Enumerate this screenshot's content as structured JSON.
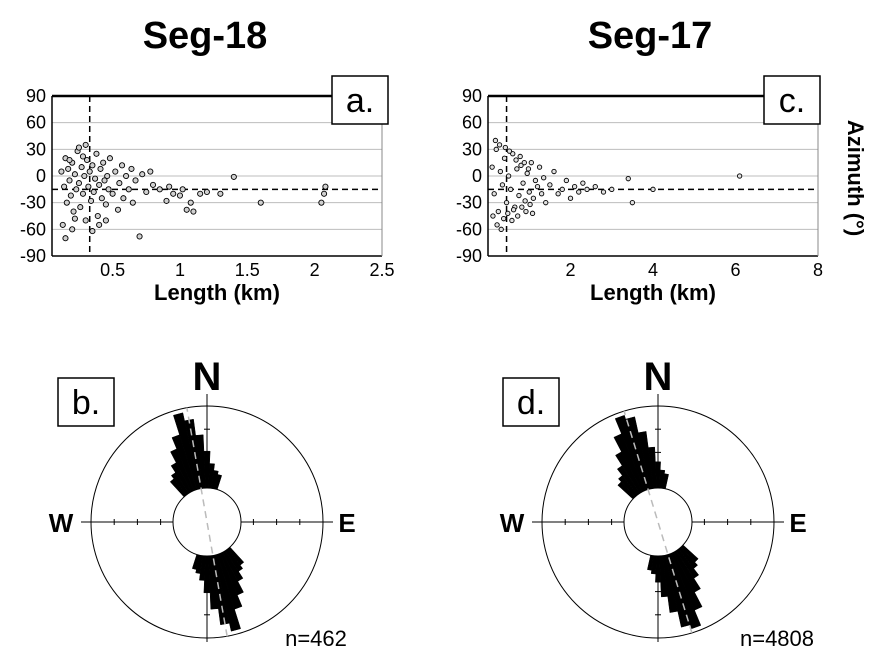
{
  "chart_data": [
    {
      "type": "scatter",
      "title": "Seg-18",
      "panel_label": "a.",
      "xlabel": "Length (km)",
      "ylabel": "",
      "xlim": [
        0.05,
        2.5
      ],
      "ylim": [
        -90,
        90
      ],
      "x_ticks": [
        "0.5",
        "1",
        "1.5",
        "2",
        "2.5"
      ],
      "x_tick_values": [
        0.5,
        1,
        1.5,
        2,
        2.5
      ],
      "y_ticks": [
        "90",
        "60",
        "30",
        "0",
        "-30",
        "-60",
        "-90"
      ],
      "y_tick_values": [
        90,
        60,
        30,
        0,
        -30,
        -60,
        -90
      ],
      "grid": true,
      "ref_mean_azimuth": -15,
      "ref_length": 0.33,
      "points": [
        [
          0.12,
          5
        ],
        [
          0.14,
          -12
        ],
        [
          0.15,
          20
        ],
        [
          0.16,
          -30
        ],
        [
          0.17,
          8
        ],
        [
          0.18,
          -5
        ],
        [
          0.19,
          -22
        ],
        [
          0.2,
          15
        ],
        [
          0.21,
          -40
        ],
        [
          0.22,
          2
        ],
        [
          0.23,
          -15
        ],
        [
          0.24,
          28
        ],
        [
          0.25,
          -8
        ],
        [
          0.26,
          -35
        ],
        [
          0.27,
          10
        ],
        [
          0.28,
          -20
        ],
        [
          0.29,
          0
        ],
        [
          0.3,
          -50
        ],
        [
          0.31,
          18
        ],
        [
          0.32,
          -12
        ],
        [
          0.33,
          5
        ],
        [
          0.34,
          -28
        ],
        [
          0.35,
          12
        ],
        [
          0.36,
          -18
        ],
        [
          0.37,
          -3
        ],
        [
          0.38,
          25
        ],
        [
          0.39,
          -45
        ],
        [
          0.4,
          -10
        ],
        [
          0.41,
          8
        ],
        [
          0.42,
          -25
        ],
        [
          0.43,
          15
        ],
        [
          0.44,
          -5
        ],
        [
          0.45,
          -32
        ],
        [
          0.46,
          0
        ],
        [
          0.47,
          -15
        ],
        [
          0.48,
          20
        ],
        [
          0.5,
          -20
        ],
        [
          0.52,
          5
        ],
        [
          0.54,
          -38
        ],
        [
          0.55,
          -8
        ],
        [
          0.57,
          12
        ],
        [
          0.58,
          -25
        ],
        [
          0.6,
          0
        ],
        [
          0.62,
          -15
        ],
        [
          0.64,
          8
        ],
        [
          0.65,
          -30
        ],
        [
          0.67,
          -5
        ],
        [
          0.7,
          -68
        ],
        [
          0.72,
          2
        ],
        [
          0.75,
          -18
        ],
        [
          0.78,
          5
        ],
        [
          0.8,
          -10
        ],
        [
          0.85,
          -15
        ],
        [
          0.9,
          -28
        ],
        [
          0.92,
          -12
        ],
        [
          0.95,
          -20
        ],
        [
          1.0,
          -22
        ],
        [
          1.02,
          -15
        ],
        [
          1.05,
          -38
        ],
        [
          1.08,
          -30
        ],
        [
          1.1,
          -40
        ],
        [
          1.15,
          -20
        ],
        [
          1.2,
          -18
        ],
        [
          1.3,
          -20
        ],
        [
          1.4,
          -1
        ],
        [
          1.6,
          -30
        ],
        [
          2.05,
          -30
        ],
        [
          2.07,
          -20
        ],
        [
          2.08,
          -12
        ],
        [
          0.13,
          -55
        ],
        [
          0.15,
          -70
        ],
        [
          0.2,
          -60
        ],
        [
          0.25,
          32
        ],
        [
          0.3,
          35
        ],
        [
          0.35,
          -62
        ],
        [
          0.4,
          -55
        ],
        [
          0.45,
          -50
        ],
        [
          0.18,
          18
        ],
        [
          0.22,
          -48
        ],
        [
          0.28,
          22
        ]
      ]
    },
    {
      "type": "scatter",
      "title": "Seg-17",
      "panel_label": "c.",
      "xlabel": "Length (km)",
      "ylabel": "Azimuth (°)",
      "xlim": [
        0,
        8
      ],
      "ylim": [
        -90,
        90
      ],
      "x_ticks": [
        "2",
        "4",
        "6",
        "8"
      ],
      "x_tick_values": [
        2,
        4,
        6,
        8
      ],
      "y_ticks": [
        "90",
        "60",
        "30",
        "0",
        "-30",
        "-60",
        "-90"
      ],
      "y_tick_values": [
        90,
        60,
        30,
        0,
        -30,
        -60,
        -90
      ],
      "grid": true,
      "ref_mean_azimuth": -15,
      "ref_length": 0.45,
      "points": [
        [
          0.1,
          10
        ],
        [
          0.15,
          -20
        ],
        [
          0.2,
          30
        ],
        [
          0.25,
          -40
        ],
        [
          0.3,
          5
        ],
        [
          0.35,
          -10
        ],
        [
          0.4,
          20
        ],
        [
          0.45,
          -30
        ],
        [
          0.5,
          0
        ],
        [
          0.55,
          -15
        ],
        [
          0.6,
          25
        ],
        [
          0.65,
          -35
        ],
        [
          0.7,
          8
        ],
        [
          0.75,
          -22
        ],
        [
          0.8,
          12
        ],
        [
          0.85,
          -8
        ],
        [
          0.9,
          -28
        ],
        [
          0.95,
          3
        ],
        [
          1.0,
          -18
        ],
        [
          1.05,
          15
        ],
        [
          1.1,
          -25
        ],
        [
          1.15,
          -5
        ],
        [
          1.2,
          -12
        ],
        [
          1.25,
          10
        ],
        [
          1.3,
          -20
        ],
        [
          1.35,
          -2
        ],
        [
          1.4,
          -30
        ],
        [
          1.5,
          -10
        ],
        [
          1.6,
          5
        ],
        [
          1.7,
          -20
        ],
        [
          1.8,
          -15
        ],
        [
          1.9,
          -5
        ],
        [
          2.0,
          -25
        ],
        [
          2.1,
          -12
        ],
        [
          2.2,
          -18
        ],
        [
          2.3,
          -8
        ],
        [
          2.4,
          -15
        ],
        [
          2.6,
          -12
        ],
        [
          2.8,
          -18
        ],
        [
          3.0,
          -15
        ],
        [
          3.4,
          -3
        ],
        [
          3.5,
          -30
        ],
        [
          4.0,
          -15
        ],
        [
          6.1,
          0
        ],
        [
          0.12,
          -45
        ],
        [
          0.18,
          40
        ],
        [
          0.22,
          -55
        ],
        [
          0.28,
          35
        ],
        [
          0.32,
          -60
        ],
        [
          0.38,
          -48
        ],
        [
          0.42,
          32
        ],
        [
          0.48,
          -42
        ],
        [
          0.52,
          28
        ],
        [
          0.58,
          -50
        ],
        [
          0.62,
          -38
        ],
        [
          0.68,
          18
        ],
        [
          0.72,
          -45
        ],
        [
          0.78,
          22
        ],
        [
          0.82,
          -35
        ],
        [
          0.88,
          15
        ],
        [
          0.92,
          -40
        ],
        [
          0.98,
          8
        ],
        [
          1.02,
          -32
        ],
        [
          1.08,
          -42
        ]
      ]
    },
    {
      "type": "rose",
      "panel_label": "b.",
      "compass": [
        "N",
        "E",
        "W"
      ],
      "count_label": "n=462",
      "bin_width_deg": 5,
      "bins_north": [
        {
          "azimuth": -40,
          "length": 0.25
        },
        {
          "azimuth": -35,
          "length": 0.3
        },
        {
          "azimuth": -30,
          "length": 0.4
        },
        {
          "azimuth": -25,
          "length": 0.55
        },
        {
          "azimuth": -20,
          "length": 0.7
        },
        {
          "azimuth": -15,
          "length": 0.95
        },
        {
          "azimuth": -10,
          "length": 0.85
        },
        {
          "azimuth": -5,
          "length": 0.65
        },
        {
          "azimuth": 0,
          "length": 0.45
        },
        {
          "azimuth": 5,
          "length": 0.3
        },
        {
          "azimuth": 10,
          "length": 0.22
        },
        {
          "azimuth": 15,
          "length": 0.18
        }
      ],
      "mean_azimuth": -10
    },
    {
      "type": "rose",
      "panel_label": "d.",
      "compass": [
        "N",
        "E",
        "W"
      ],
      "count_label": "n=4808",
      "bin_width_deg": 5,
      "bins_north": [
        {
          "azimuth": -45,
          "length": 0.25
        },
        {
          "azimuth": -40,
          "length": 0.3
        },
        {
          "azimuth": -35,
          "length": 0.4
        },
        {
          "azimuth": -30,
          "length": 0.55
        },
        {
          "azimuth": -25,
          "length": 0.75
        },
        {
          "azimuth": -20,
          "length": 0.95
        },
        {
          "azimuth": -15,
          "length": 0.9
        },
        {
          "azimuth": -10,
          "length": 0.7
        },
        {
          "azimuth": -5,
          "length": 0.5
        },
        {
          "azimuth": 0,
          "length": 0.32
        },
        {
          "azimuth": 5,
          "length": 0.22
        },
        {
          "azimuth": 10,
          "length": 0.18
        }
      ],
      "mean_azimuth": -17
    }
  ]
}
